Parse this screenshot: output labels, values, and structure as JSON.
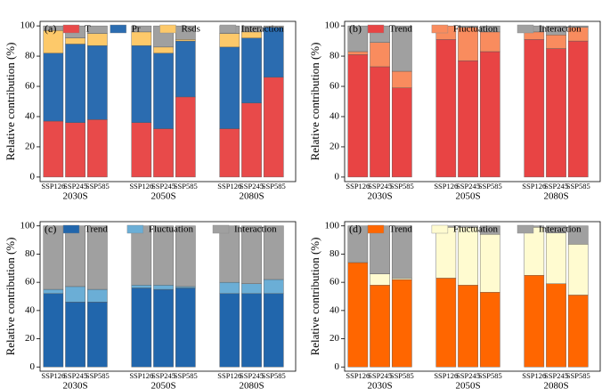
{
  "chart_data": [
    {
      "type": "stacked_bar",
      "label": "(a)",
      "ylabel": "Relative contribution (%)",
      "categories": [
        "SSP126",
        "SSP245",
        "SSP585",
        "SSP126",
        "SSP245",
        "SSP585",
        "SSP126",
        "SSP245",
        "SSP585"
      ],
      "groups": [
        "2030S",
        "2050S",
        "2080S"
      ],
      "ylim": [
        -3,
        103
      ],
      "yticks": [
        0,
        20,
        40,
        60,
        80,
        100
      ],
      "series": [
        {
          "name": "T",
          "color": "#e84a4a",
          "values": [
            37,
            36,
            38,
            36,
            32,
            53,
            32,
            49,
            66
          ]
        },
        {
          "name": "Pr",
          "color": "#2b6cb0",
          "values": [
            45,
            52,
            49,
            51,
            50,
            37,
            54,
            43,
            33
          ]
        },
        {
          "name": "Rsds",
          "color": "#fdc96a",
          "values": [
            15,
            4,
            8,
            9,
            4,
            1,
            9,
            4,
            0
          ]
        },
        {
          "name": "Interaction",
          "color": "#a0a0a0",
          "values": [
            3,
            8,
            5,
            4,
            14,
            9,
            5,
            4,
            1
          ]
        }
      ]
    },
    {
      "type": "stacked_bar",
      "label": "(b)",
      "ylabel": "Relative contribution (%)",
      "categories": [
        "SSP126",
        "SSP245",
        "SSP585",
        "SSP126",
        "SSP245",
        "SSP585",
        "SSP126",
        "SSP245",
        "SSP585"
      ],
      "groups": [
        "2030S",
        "2050S",
        "2080S"
      ],
      "ylim": [
        -3,
        103
      ],
      "yticks": [
        0,
        20,
        40,
        60,
        80,
        100
      ],
      "series": [
        {
          "name": "Trend",
          "color": "#e84444",
          "values": [
            81,
            73,
            59,
            91,
            77,
            83,
            91,
            85,
            90
          ]
        },
        {
          "name": "Fluctuation",
          "color": "#f98c5e",
          "values": [
            2,
            16,
            11,
            9,
            22,
            13,
            5,
            9,
            9
          ]
        },
        {
          "name": "Interaction",
          "color": "#a0a0a0",
          "values": [
            17,
            11,
            30,
            0,
            1,
            4,
            4,
            6,
            1
          ]
        }
      ]
    },
    {
      "type": "stacked_bar",
      "label": "(c)",
      "ylabel": "Relative contribution (%)",
      "categories": [
        "SSP126",
        "SSP245",
        "SSP585",
        "SSP126",
        "SSP245",
        "SSP585",
        "SSP126",
        "SSP245",
        "SSP585"
      ],
      "groups": [
        "2030S",
        "2050S",
        "2080S"
      ],
      "ylim": [
        -3,
        103
      ],
      "yticks": [
        0,
        20,
        40,
        60,
        80,
        100
      ],
      "series": [
        {
          "name": "Trend",
          "color": "#2166ac",
          "values": [
            52,
            46,
            46,
            56,
            55,
            56,
            52,
            52,
            52
          ]
        },
        {
          "name": "Fluctuation",
          "color": "#6baed6",
          "values": [
            3,
            11,
            9,
            2,
            3,
            1,
            8,
            7,
            10
          ]
        },
        {
          "name": "Interaction",
          "color": "#a0a0a0",
          "values": [
            45,
            43,
            45,
            42,
            42,
            43,
            40,
            41,
            38
          ]
        }
      ]
    },
    {
      "type": "stacked_bar",
      "label": "(d)",
      "ylabel": "Relative contribution (%)",
      "categories": [
        "SSP126",
        "SSP245",
        "SSP585",
        "SSP126",
        "SSP245",
        "SSP585",
        "SSP126",
        "SSP245",
        "SSP585"
      ],
      "groups": [
        "2030S",
        "2050S",
        "2080S"
      ],
      "ylim": [
        -3,
        103
      ],
      "yticks": [
        0,
        20,
        40,
        60,
        80,
        100
      ],
      "series": [
        {
          "name": "Trend",
          "color": "#ff6600",
          "values": [
            74,
            58,
            62,
            63,
            58,
            53,
            65,
            59,
            51
          ]
        },
        {
          "name": "Fluctuation",
          "color": "#fffbd0",
          "values": [
            0,
            8,
            1,
            36,
            41,
            41,
            34,
            36,
            36
          ]
        },
        {
          "name": "Interaction",
          "color": "#a0a0a0",
          "values": [
            26,
            34,
            37,
            1,
            1,
            6,
            1,
            5,
            13
          ]
        }
      ]
    }
  ]
}
